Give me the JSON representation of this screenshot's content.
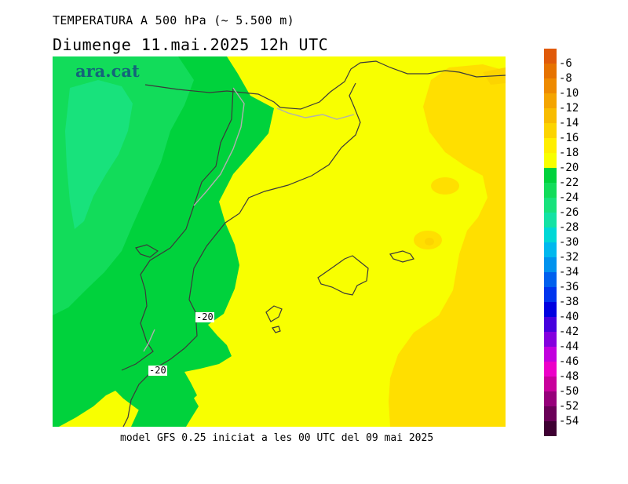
{
  "header": {
    "title": "TEMPERATURA A 500 hPa (~ 5.500 m)",
    "date_line": "Diumenge  11.mai.2025 12h UTC"
  },
  "brand": "ara.cat",
  "footer": "model GFS 0.25 iniciat a les 00 UTC del 09 mai 2025",
  "contour_labels": [
    "-20",
    "-20"
  ],
  "legend": {
    "colors": [
      "#e05a0a",
      "#e67200",
      "#ee8a00",
      "#f4a400",
      "#f8bc00",
      "#fcd400",
      "#ffee00",
      "#f8ff00",
      "#00d23c",
      "#12dc5a",
      "#18e27c",
      "#14e2a4",
      "#00d8d6",
      "#00b8ee",
      "#0092ee",
      "#0060ee",
      "#0034ee",
      "#0000e0",
      "#4600de",
      "#8400de",
      "#c200de",
      "#ec00c8",
      "#c8009c",
      "#96007a",
      "#6a0058",
      "#3e0032"
    ],
    "labels": [
      "-6",
      "-8",
      "-10",
      "-12",
      "-14",
      "-16",
      "-18",
      "-20",
      "-22",
      "-24",
      "-26",
      "-28",
      "-30",
      "-32",
      "-34",
      "-36",
      "-38",
      "-40",
      "-42",
      "-44",
      "-46",
      "-48",
      "-50",
      "-52",
      "-54"
    ]
  }
}
